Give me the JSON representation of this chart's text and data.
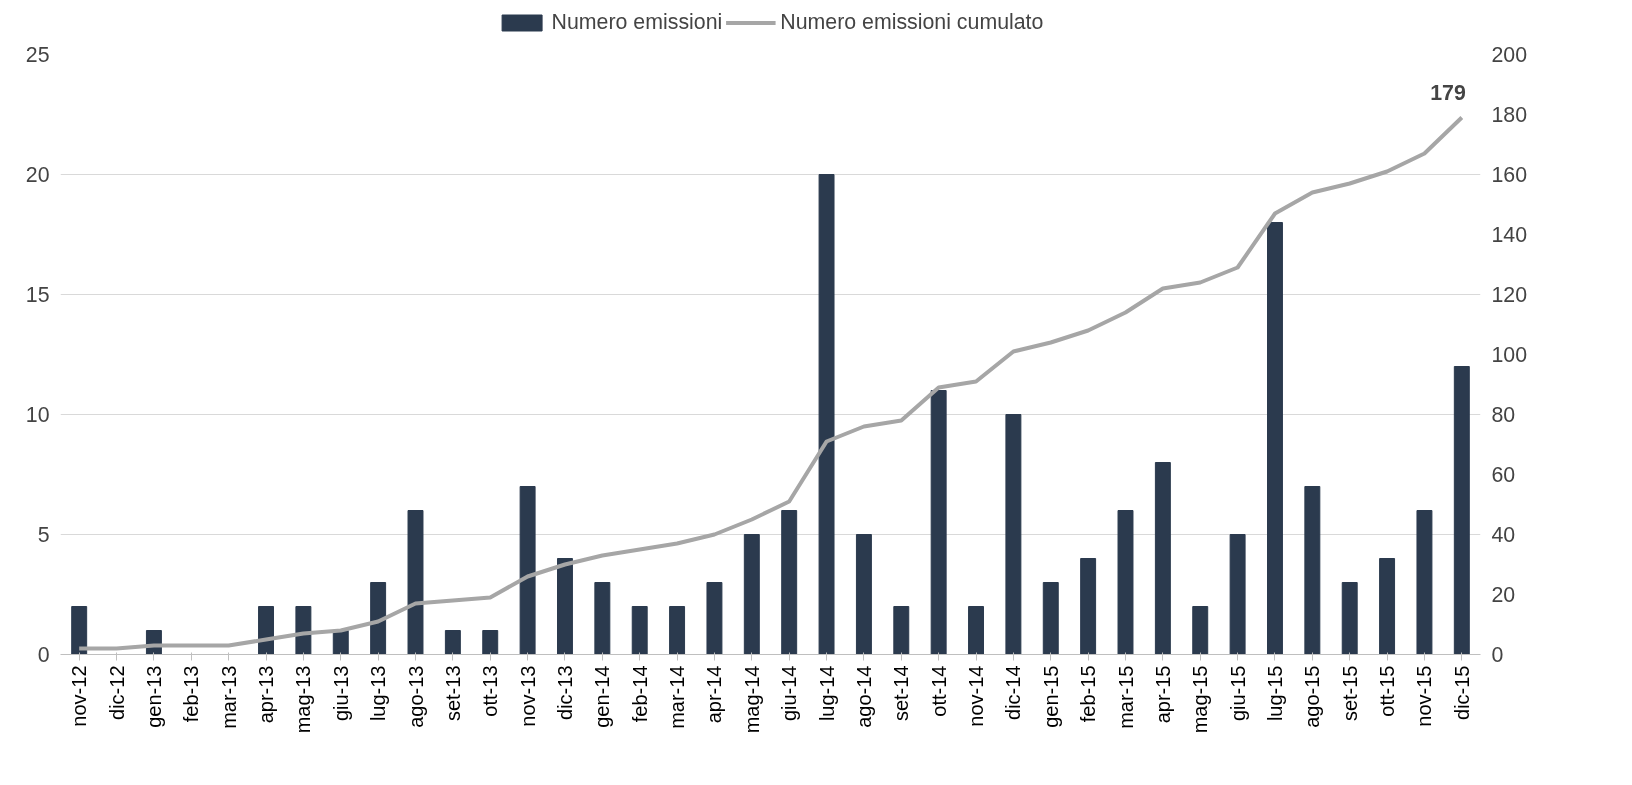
{
  "chart_data": {
    "type": "bar",
    "categories": [
      "nov-12",
      "dic-12",
      "gen-13",
      "feb-13",
      "mar-13",
      "apr-13",
      "mag-13",
      "giu-13",
      "lug-13",
      "ago-13",
      "set-13",
      "ott-13",
      "nov-13",
      "dic-13",
      "gen-14",
      "feb-14",
      "mar-14",
      "apr-14",
      "mag-14",
      "giu-14",
      "lug-14",
      "ago-14",
      "set-14",
      "ott-14",
      "nov-14",
      "dic-14",
      "gen-15",
      "feb-15",
      "mar-15",
      "apr-15",
      "mag-15",
      "giu-15",
      "lug-15",
      "ago-15",
      "set-15",
      "ott-15",
      "nov-15",
      "dic-15"
    ],
    "series": [
      {
        "name": "Numero emissioni",
        "color": "#2b3a4e",
        "values": [
          2,
          0,
          1,
          0,
          0,
          2,
          2,
          1,
          3,
          6,
          1,
          1,
          7,
          4,
          3,
          2,
          2,
          3,
          5,
          6,
          20,
          5,
          2,
          11,
          2,
          10,
          3,
          4,
          6,
          8,
          2,
          5,
          18,
          7,
          3,
          4,
          6,
          12
        ]
      },
      {
        "name": "Numero emissioni cumulato",
        "type": "line",
        "axis": "y2",
        "color": "#a6a6a6",
        "values": [
          2,
          2,
          3,
          3,
          3,
          5,
          7,
          8,
          11,
          17,
          18,
          19,
          26,
          30,
          33,
          35,
          37,
          40,
          45,
          51,
          71,
          76,
          78,
          89,
          91,
          101,
          104,
          108,
          114,
          122,
          124,
          129,
          147,
          154,
          157,
          161,
          167,
          179
        ]
      }
    ],
    "ylim": [
      0,
      25
    ],
    "yticks": [
      0,
      5,
      10,
      15,
      20,
      25
    ],
    "y2lim": [
      0,
      200
    ],
    "y2ticks": [
      0,
      20,
      40,
      60,
      80,
      100,
      120,
      140,
      160,
      180,
      200
    ],
    "grid": "y",
    "legend": "top",
    "annotations": [
      "179"
    ]
  }
}
